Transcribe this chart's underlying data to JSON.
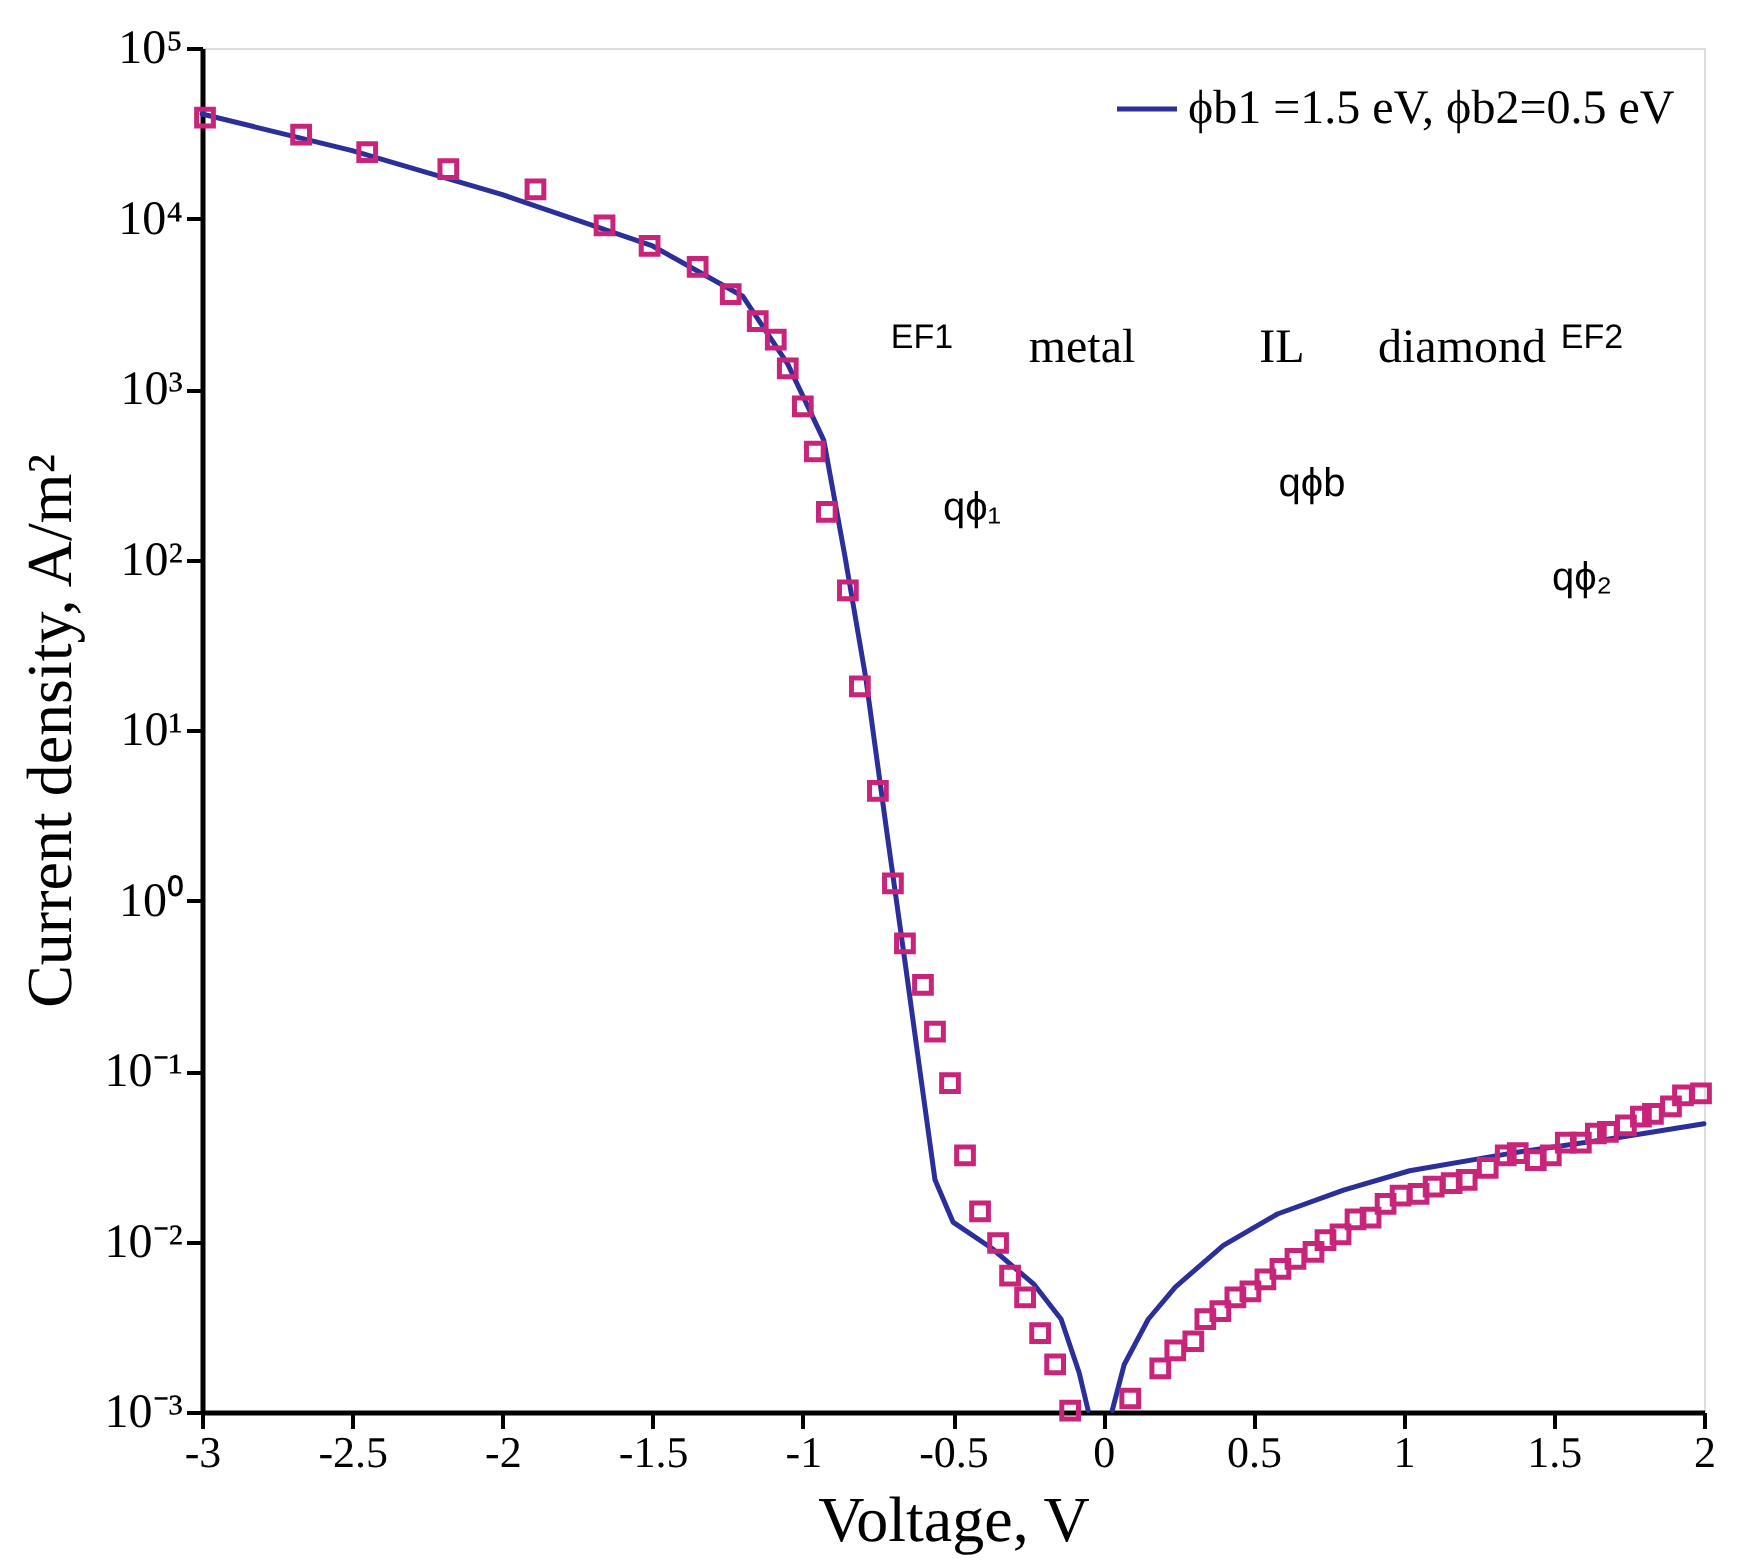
{
  "chart_data": {
    "type": "line",
    "xlabel": "Voltage, V",
    "ylabel": "Current density, A/m²",
    "log": "y",
    "grid": false,
    "legend": "top right",
    "xlim": [
      -3,
      2
    ],
    "xticks": [
      -3,
      -2.5,
      -2,
      -1.5,
      -1,
      -0.5,
      0,
      0.5,
      1,
      1.5,
      2
    ],
    "ylim": [
      0.001,
      100000
    ],
    "yticks": [
      {
        "value": 0.001,
        "label": "10⁻³"
      },
      {
        "value": 0.01,
        "label": "10⁻²"
      },
      {
        "value": 0.1,
        "label": "10⁻¹"
      },
      {
        "value": 1,
        "label": "10⁰"
      },
      {
        "value": 10,
        "label": "10¹"
      },
      {
        "value": 100,
        "label": "10²"
      },
      {
        "value": 1000,
        "label": "10³"
      },
      {
        "value": 10000,
        "label": "10⁴"
      },
      {
        "value": 100000,
        "label": "10⁵"
      }
    ],
    "annotations": [
      "metal",
      "IL",
      "diamond",
      "EF1",
      "EF2",
      "qϕ₁",
      "qϕb",
      "qϕ₂"
    ],
    "series": [
      {
        "name": "ϕb1 =1.5 eV, ϕb2=0.5 eV",
        "color": "#2b2f9a",
        "marker": "none",
        "line_style": "solid",
        "x": [
          -3,
          -2.5,
          -2,
          -1.5,
          -1.2,
          -1.05,
          -0.93,
          -0.86,
          -0.79,
          -0.72,
          -0.66,
          -0.61,
          -0.56,
          -0.5,
          -0.37,
          -0.23,
          -0.14,
          -0.08,
          -0.05,
          0,
          0.03,
          0.07,
          0.15,
          0.24,
          0.4,
          0.58,
          0.8,
          1.02,
          1.36,
          1.69,
          2.0
        ],
        "values": [
          41000,
          25000,
          13800,
          6900,
          3500,
          1400,
          500,
          105,
          20,
          2.5,
          0.44,
          0.1,
          0.023,
          0.013,
          0.0091,
          0.0056,
          0.0035,
          0.0017,
          0.00102,
          null,
          0.00102,
          0.0019,
          0.0035,
          0.0054,
          0.0095,
          0.0145,
          0.02,
          0.026,
          0.033,
          0.04,
          0.049
        ]
      },
      {
        "type": "scatter",
        "color": "#c8247a",
        "marker": "square",
        "x": [
          -2.99,
          -2.67,
          -2.45,
          -2.18,
          -1.89,
          -1.66,
          -1.51,
          -1.35,
          -1.24,
          -1.15,
          -1.09,
          -1.05,
          -1.0,
          -0.96,
          -0.92,
          -0.85,
          -0.81,
          -0.75,
          -0.7,
          -0.66,
          -0.6,
          -0.56,
          -0.51,
          -0.46,
          -0.41,
          -0.35,
          -0.31,
          -0.26,
          -0.21,
          -0.16,
          -0.11,
          0.09,
          0.19,
          0.24,
          0.3,
          0.34,
          0.39,
          0.44,
          0.49,
          0.54,
          0.59,
          0.64,
          0.7,
          0.74,
          0.79,
          0.84,
          0.89,
          0.94,
          0.99,
          1.05,
          1.1,
          1.16,
          1.21,
          1.28,
          1.34,
          1.38,
          1.44,
          1.49,
          1.54,
          1.59,
          1.64,
          1.68,
          1.74,
          1.79,
          1.83,
          1.89,
          1.93,
          1.99
        ],
        "values": [
          39000,
          31000,
          24500,
          19500,
          14800,
          9100,
          6900,
          5200,
          3600,
          2500,
          1950,
          1320,
          790,
          430,
          190,
          66,
          18,
          4.4,
          1.26,
          0.56,
          0.32,
          0.17,
          0.085,
          0.032,
          0.015,
          0.0098,
          0.0063,
          0.0047,
          0.0029,
          0.0019,
          0.00102,
          0.0012,
          0.0018,
          0.0023,
          0.0026,
          0.0035,
          0.0039,
          0.0047,
          0.0051,
          0.006,
          0.0069,
          0.0079,
          0.0087,
          0.0102,
          0.011,
          0.0135,
          0.0138,
          0.0166,
          0.0186,
          0.019,
          0.021,
          0.022,
          0.023,
          0.027,
          0.032,
          0.033,
          0.03,
          0.032,
          0.038,
          0.038,
          0.043,
          0.044,
          0.048,
          0.054,
          0.056,
          0.062,
          0.072,
          0.074
        ]
      }
    ]
  }
}
